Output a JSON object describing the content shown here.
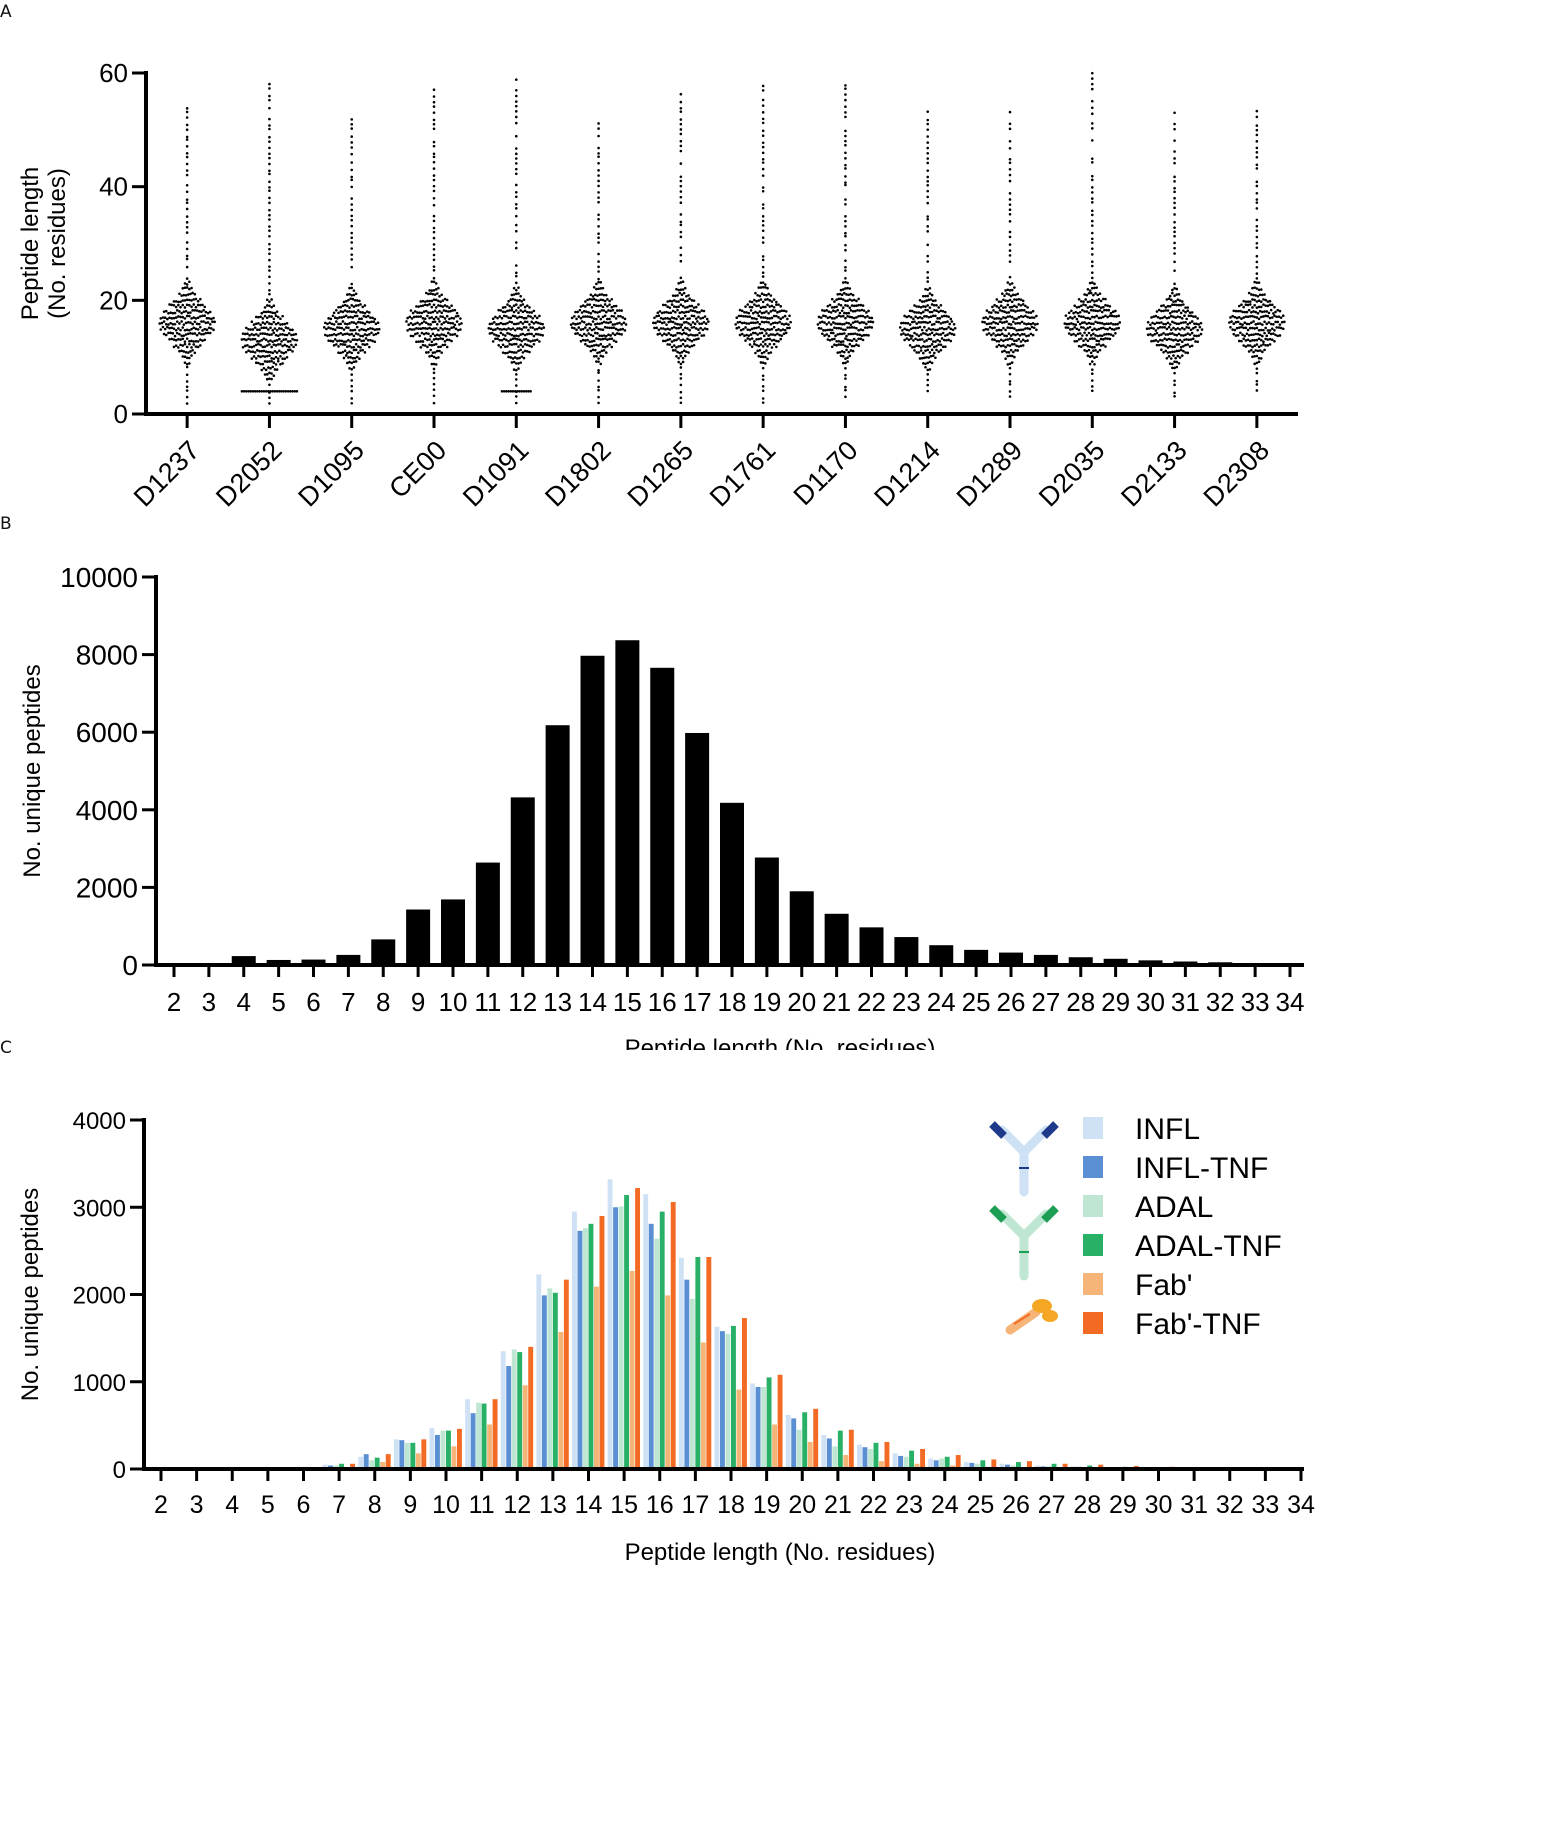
{
  "panels": {
    "a": "A",
    "b": "B",
    "c": "C"
  },
  "chart_data": [
    {
      "type": "scatter",
      "subtype": "beeswarm",
      "title": "",
      "ylabel_line1": "Peptide length",
      "ylabel_line2": "(No. residues)",
      "xlabel": "",
      "ylim": [
        0,
        60
      ],
      "yticks": [
        0,
        20,
        40,
        60
      ],
      "categories": [
        "D1237",
        "D2052",
        "D1095",
        "CE00",
        "D1091",
        "D1802",
        "D1265",
        "D1761",
        "D1170",
        "D1214",
        "D1289",
        "D2035",
        "D2133",
        "D2308"
      ],
      "median": [
        16,
        13,
        15,
        16,
        15,
        16,
        16,
        16,
        16,
        15,
        16,
        16,
        15,
        16
      ],
      "min": [
        2,
        2,
        2,
        2,
        2,
        2,
        2,
        2,
        3,
        4,
        3,
        4,
        3,
        4
      ],
      "max": [
        54,
        58,
        52,
        57,
        59,
        51,
        56,
        58,
        58,
        53,
        53,
        60,
        53,
        53
      ]
    },
    {
      "type": "bar",
      "title": "",
      "xlabel": "Peptide length (No. residues)",
      "ylabel": "No. unique peptides",
      "ylim": [
        0,
        10000
      ],
      "yticks": [
        0,
        2000,
        4000,
        6000,
        8000,
        10000
      ],
      "categories": [
        "2",
        "3",
        "4",
        "5",
        "6",
        "7",
        "8",
        "9",
        "10",
        "11",
        "12",
        "13",
        "14",
        "15",
        "16",
        "17",
        "18",
        "19",
        "20",
        "21",
        "22",
        "23",
        "24",
        "25",
        "26",
        "27",
        "28",
        "29",
        "30",
        "31",
        "32",
        "33",
        "34"
      ],
      "values": [
        10,
        20,
        230,
        130,
        140,
        260,
        660,
        1430,
        1690,
        2640,
        4320,
        6180,
        7970,
        8370,
        7660,
        5980,
        4180,
        2770,
        1900,
        1320,
        970,
        720,
        510,
        390,
        320,
        260,
        200,
        160,
        120,
        90,
        70,
        40,
        30
      ]
    },
    {
      "type": "bar",
      "title": "",
      "xlabel": "Peptide length (No. residues)",
      "ylabel": "No. unique peptides",
      "ylim": [
        0,
        4000
      ],
      "yticks": [
        0,
        1000,
        2000,
        3000,
        4000
      ],
      "categories": [
        "2",
        "3",
        "4",
        "5",
        "6",
        "7",
        "8",
        "9",
        "10",
        "11",
        "12",
        "13",
        "14",
        "15",
        "16",
        "17",
        "18",
        "19",
        "20",
        "21",
        "22",
        "23",
        "24",
        "25",
        "26",
        "27",
        "28",
        "29",
        "30",
        "31",
        "32",
        "33",
        "34"
      ],
      "legend_position": "top-right",
      "series": [
        {
          "name": "INFL",
          "color": "#cfe2f5",
          "values": [
            0,
            0,
            0,
            0,
            5,
            50,
            140,
            340,
            470,
            800,
            1350,
            2230,
            2950,
            3320,
            3150,
            2420,
            1630,
            980,
            620,
            390,
            280,
            180,
            120,
            80,
            60,
            40,
            30,
            20,
            15,
            5,
            0,
            0,
            0
          ]
        },
        {
          "name": "INFL-TNF",
          "color": "#5b8fd3",
          "values": [
            0,
            0,
            0,
            0,
            5,
            40,
            170,
            330,
            390,
            640,
            1180,
            1990,
            2730,
            3000,
            2810,
            2170,
            1580,
            940,
            580,
            350,
            250,
            150,
            100,
            70,
            50,
            30,
            25,
            15,
            10,
            5,
            0,
            0,
            0
          ]
        },
        {
          "name": "ADAL",
          "color": "#bfe6d2",
          "values": [
            0,
            0,
            0,
            0,
            5,
            40,
            100,
            300,
            440,
            760,
            1370,
            2070,
            2760,
            3010,
            2640,
            1950,
            1550,
            940,
            450,
            260,
            230,
            140,
            120,
            60,
            40,
            30,
            20,
            15,
            10,
            5,
            0,
            0,
            0
          ]
        },
        {
          "name": "ADAL-TNF",
          "color": "#27b066",
          "values": [
            0,
            0,
            0,
            0,
            5,
            60,
            130,
            300,
            440,
            750,
            1340,
            2020,
            2810,
            3140,
            2950,
            2430,
            1640,
            1050,
            650,
            440,
            300,
            210,
            140,
            100,
            80,
            60,
            40,
            25,
            20,
            10,
            0,
            0,
            0
          ]
        },
        {
          "name": "Fab'",
          "color": "#f5b478",
          "values": [
            0,
            0,
            0,
            0,
            0,
            20,
            80,
            180,
            260,
            510,
            960,
            1570,
            2090,
            2270,
            1990,
            1450,
            910,
            510,
            310,
            160,
            90,
            60,
            40,
            25,
            20,
            15,
            10,
            5,
            5,
            0,
            0,
            0,
            0
          ]
        },
        {
          "name": "Fab'-TNF",
          "color": "#f26a23",
          "values": [
            0,
            0,
            0,
            0,
            5,
            60,
            170,
            340,
            460,
            800,
            1400,
            2170,
            2900,
            3220,
            3060,
            2430,
            1730,
            1080,
            690,
            450,
            310,
            230,
            160,
            110,
            90,
            60,
            50,
            35,
            25,
            15,
            5,
            0,
            0
          ]
        }
      ],
      "icons": [
        "infliximab-antibody-icon",
        "adalimumab-antibody-icon",
        "fab-fragment-icon"
      ]
    }
  ]
}
